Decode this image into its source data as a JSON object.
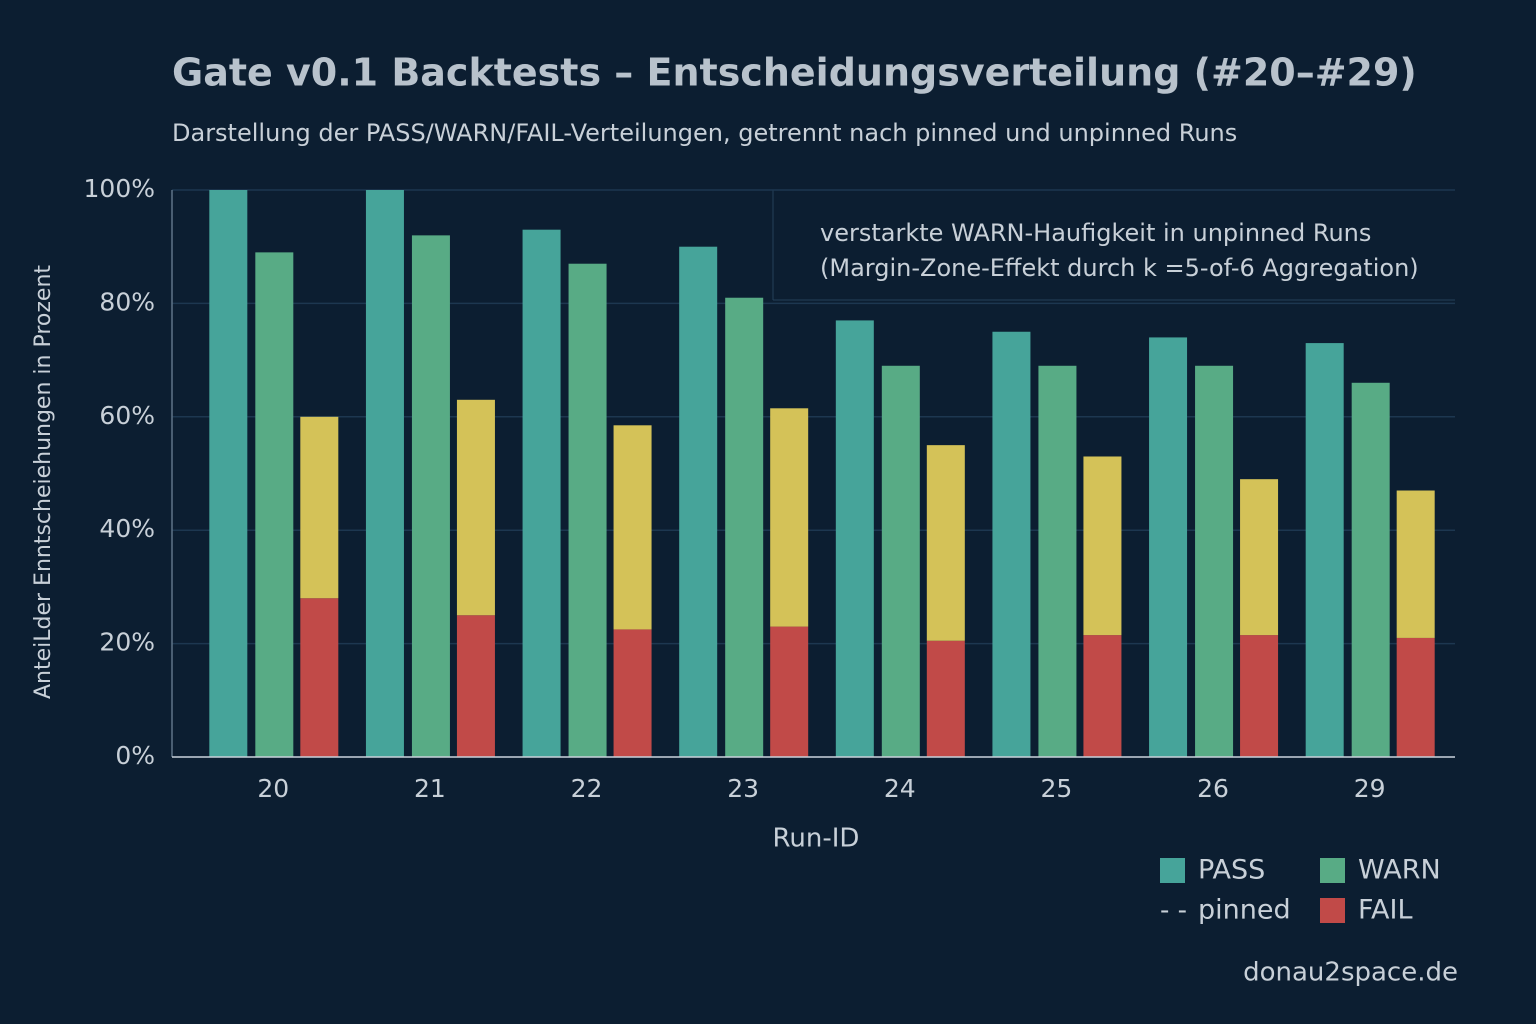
{
  "chart_data": {
    "type": "bar",
    "title": "Gate v0.1 Backtests – Entscheidungsverteilung (#20–#29)",
    "subtitle": "Darstellung der PASS/WARN/FAIL-Verteilungen, getrennt nach pinned und unpinned Runs",
    "x_label": "Run-ID",
    "y_label": "AnteiLder Enntscheiehungen in Prozent",
    "annotation": [
      "verstarkte WARN-Haufigkeit in unpinned Runs",
      "(Margin-Zone-Effekt durch k =5-of-6 Aggregation)"
    ],
    "legend_note": "pinned",
    "watermark": "donau2space.de",
    "categories": [
      "20",
      "21",
      "22",
      "23",
      "24",
      "25",
      "26",
      "29"
    ],
    "series": [
      {
        "name": "PASS",
        "color": "#46a49a",
        "values": [
          100,
          100,
          93,
          90,
          77,
          75,
          74,
          73
        ]
      },
      {
        "name": "WARN",
        "color": "#58ab85",
        "values": [
          89,
          92,
          87,
          81,
          69,
          69,
          69,
          66
        ]
      },
      {
        "name": "FAIL",
        "color": "#c14a48",
        "values": [
          28,
          25,
          22.5,
          23,
          20.5,
          21.5,
          21.5,
          21
        ]
      },
      {
        "color": "#d4c258",
        "values": [
          32,
          38,
          36,
          38.5,
          34.5,
          31.5,
          27.5,
          26
        ]
      }
    ],
    "ylim": [
      0,
      100
    ],
    "yticks": [
      {
        "value": 0,
        "label": "0%"
      },
      {
        "value": 20,
        "label": "20%"
      },
      {
        "value": 40,
        "label": "40%"
      },
      {
        "value": 60,
        "label": "60%"
      },
      {
        "value": 80,
        "label": "80%"
      },
      {
        "value": 100,
        "label": "100%"
      }
    ],
    "grid": true
  }
}
